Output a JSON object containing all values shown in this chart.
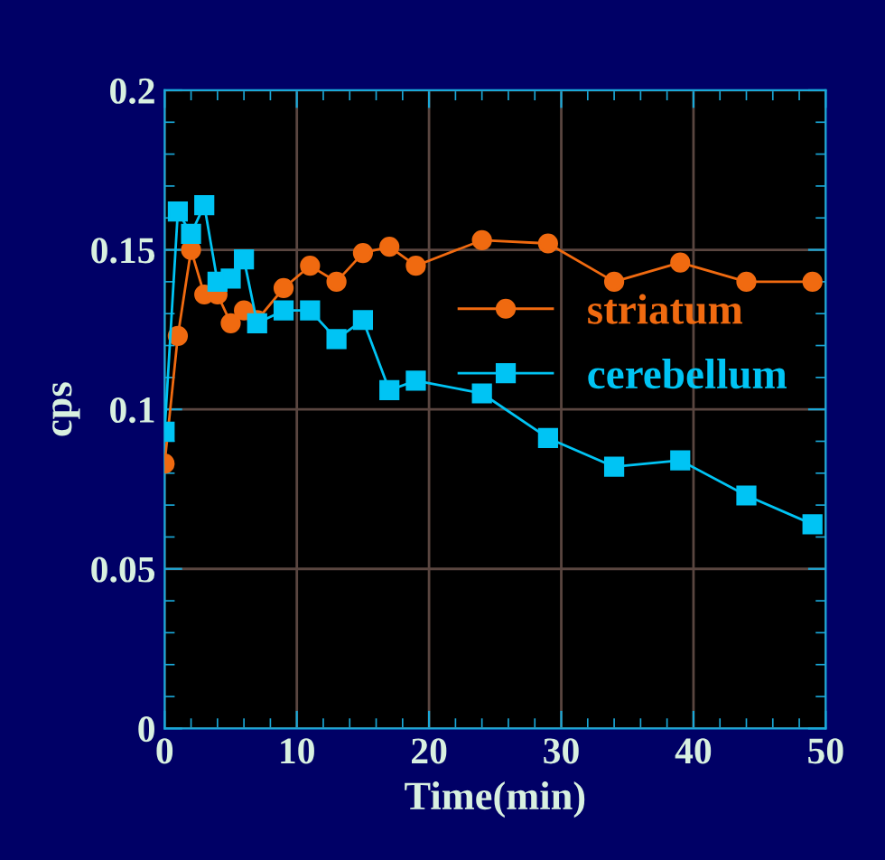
{
  "chart_data": {
    "type": "line",
    "xlabel": "Time(min)",
    "ylabel": "cps",
    "xlim": [
      0,
      50
    ],
    "xticks": [
      0,
      10,
      20,
      30,
      40,
      50
    ],
    "ylim": [
      0,
      0.2
    ],
    "yticks": [
      0,
      0.05,
      0.1,
      0.15,
      0.2
    ],
    "grid": true,
    "legend": "right",
    "line_style": "solid",
    "series": [
      {
        "name": "striatum",
        "color": "#f06a10",
        "marker": "circle",
        "x": [
          0,
          1,
          2,
          3,
          4,
          5,
          6,
          7,
          9,
          11,
          13,
          15,
          17,
          19,
          24,
          29,
          34,
          39,
          44,
          49
        ],
        "values": [
          0.083,
          0.123,
          0.15,
          0.136,
          0.136,
          0.127,
          0.131,
          0.128,
          0.138,
          0.145,
          0.14,
          0.149,
          0.151,
          0.145,
          0.153,
          0.152,
          0.14,
          0.146,
          0.14,
          0.14
        ]
      },
      {
        "name": "cerebellum",
        "color": "#00c4f4",
        "marker": "square",
        "x": [
          0,
          1,
          2,
          3,
          4,
          5,
          6,
          7,
          9,
          11,
          13,
          15,
          17,
          19,
          24,
          29,
          34,
          39,
          44,
          49
        ],
        "values": [
          0.093,
          0.162,
          0.155,
          0.164,
          0.14,
          0.141,
          0.147,
          0.127,
          0.131,
          0.131,
          0.122,
          0.128,
          0.106,
          0.109,
          0.105,
          0.091,
          0.082,
          0.084,
          0.073,
          0.064
        ]
      }
    ]
  }
}
